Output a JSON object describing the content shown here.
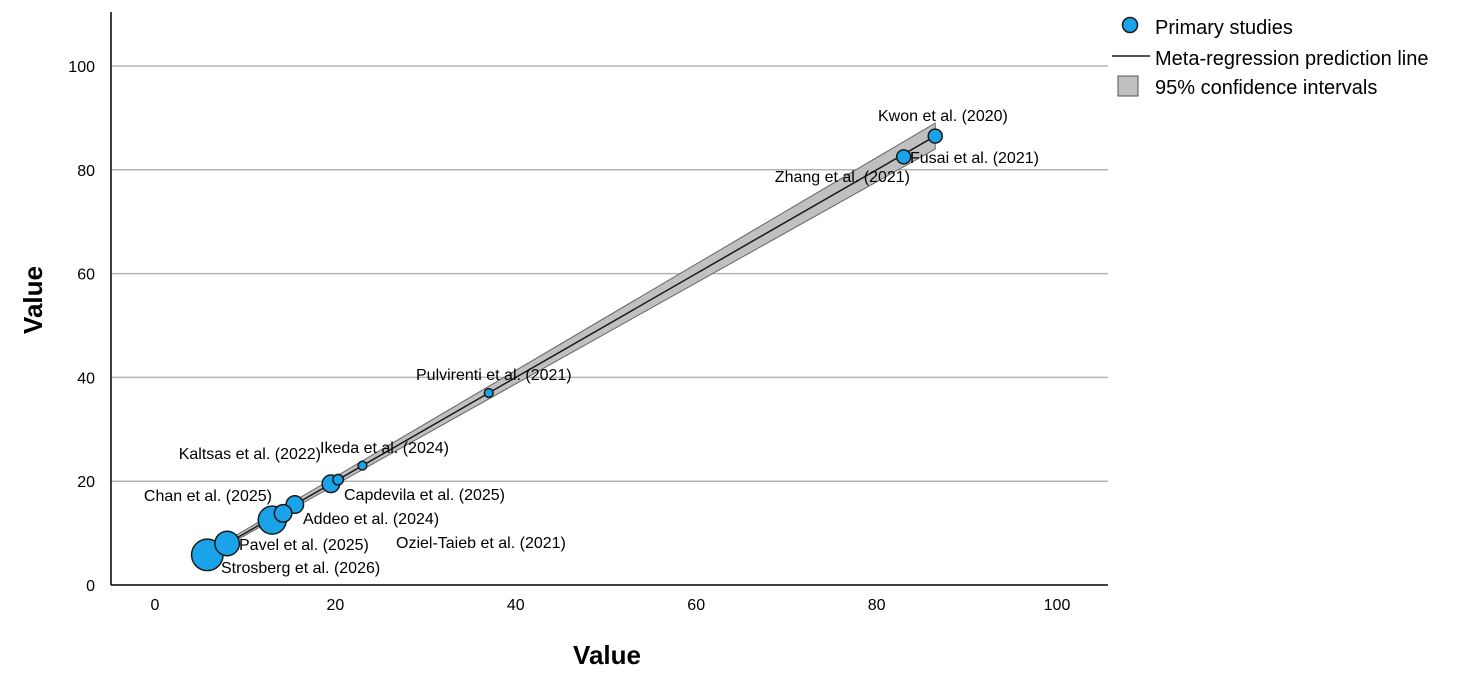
{
  "chart_data": {
    "type": "scatter",
    "xlabel": "Value",
    "ylabel": "Value",
    "xlim": [
      -5,
      106
    ],
    "ylim": [
      0,
      111
    ],
    "x_ticks": [
      0,
      20,
      40,
      60,
      80,
      100
    ],
    "y_ticks": [
      0,
      20,
      40,
      60,
      80,
      100
    ],
    "grid": "horizontal",
    "legend_position": "top-right",
    "legend": {
      "points": "Primary studies",
      "line": "Meta-regression prediction line",
      "ci": "95% confidence intervals"
    },
    "colors": {
      "point_fill": "#1aa3e8",
      "point_stroke": "#1a1a1a",
      "ci_fill": "#c0c0c0",
      "line": "#1a1a1a",
      "grid": "#b4b4b4"
    },
    "regression": {
      "x": [
        5.5,
        86.5
      ],
      "y": [
        5.5,
        86.5
      ],
      "ci_lower": [
        5.2,
        84.0
      ],
      "ci_upper": [
        6.0,
        89.0
      ]
    },
    "points": [
      {
        "label": "Kwon et al. (2020)",
        "x": 86.5,
        "y": 86.5,
        "weight": 2
      },
      {
        "label": "Fusai et al. (2021)",
        "x": 83.0,
        "y": 82.5,
        "weight": 2
      },
      {
        "label": "Zhang et al. (2021)",
        "x": 83.0,
        "y": 82.5,
        "weight": 2
      },
      {
        "label": "Pulvirenti et al. (2021)",
        "x": 37.0,
        "y": 37.0,
        "weight": 0.5
      },
      {
        "label": "Ikeda et al. (2024)",
        "x": 23.0,
        "y": 23.0,
        "weight": 0.5
      },
      {
        "label": "Kaltsas et al. (2022)",
        "x": 20.3,
        "y": 20.3,
        "weight": 1
      },
      {
        "label": "Capdevila et al. (2025)",
        "x": 19.5,
        "y": 19.5,
        "weight": 3
      },
      {
        "label": "Addeo et al. (2024)",
        "x": 15.5,
        "y": 15.5,
        "weight": 3
      },
      {
        "label": "Chan et al. (2025)",
        "x": 14.2,
        "y": 13.8,
        "weight": 3
      },
      {
        "label": "Oziel-Taieb et al. (2021)",
        "x": 13.0,
        "y": 12.5,
        "weight": 6
      },
      {
        "label": "Pavel et al. (2025)",
        "x": 8.0,
        "y": 8.0,
        "weight": 5
      },
      {
        "label": "Strosberg et al. (2026)",
        "x": 5.8,
        "y": 5.8,
        "weight": 7
      }
    ]
  }
}
